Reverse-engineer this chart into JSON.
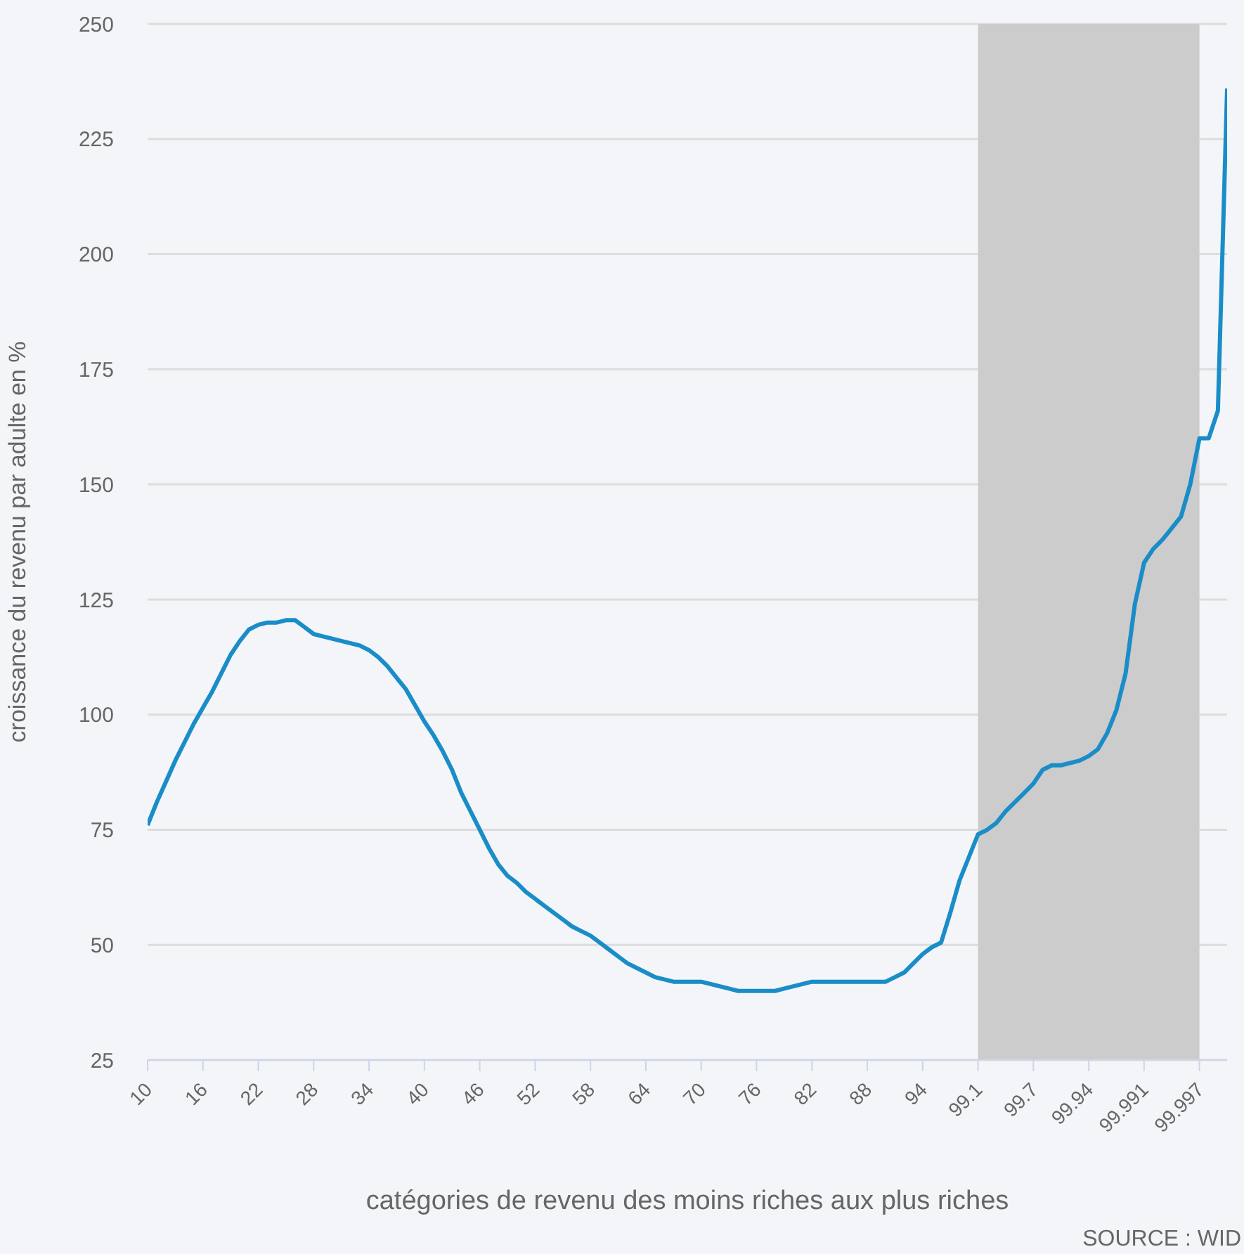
{
  "chart_data": {
    "type": "line",
    "xlabel": "catégories de revenu des moins riches aux plus riches",
    "ylabel": "croissance du revenu par adulte en %",
    "annotations": [
      "SOURCE : WID"
    ],
    "categories": [
      "10",
      null,
      null,
      null,
      null,
      null,
      "16",
      null,
      null,
      null,
      null,
      null,
      "22",
      null,
      null,
      null,
      null,
      null,
      "28",
      null,
      null,
      null,
      null,
      null,
      "34",
      null,
      null,
      null,
      null,
      null,
      "40",
      null,
      null,
      null,
      null,
      null,
      "46",
      null,
      null,
      null,
      null,
      null,
      "52",
      null,
      null,
      null,
      null,
      null,
      "58",
      null,
      null,
      null,
      null,
      null,
      "64",
      null,
      null,
      null,
      null,
      null,
      "70",
      null,
      null,
      null,
      null,
      null,
      "76",
      null,
      null,
      null,
      null,
      null,
      "82",
      null,
      null,
      null,
      null,
      null,
      "88",
      null,
      null,
      null,
      null,
      null,
      "94",
      null,
      null,
      null,
      null,
      null,
      "99.1",
      null,
      null,
      null,
      null,
      null,
      "99.7",
      null,
      null,
      null,
      null,
      null,
      "99.94",
      null,
      null,
      null,
      null,
      null,
      "99.991",
      null,
      null,
      null,
      null,
      null,
      "99.997",
      null,
      null,
      null
    ],
    "series": [
      {
        "color": "#1a8dc8",
        "values": [
          76,
          81,
          85.5,
          90,
          94,
          98,
          101.5,
          105,
          109,
          113,
          116,
          118.5,
          119.5,
          120,
          120,
          120.5,
          120.5,
          119,
          117.5,
          117,
          116.5,
          116,
          115.5,
          115,
          114,
          112.5,
          110.5,
          108,
          105.5,
          102,
          98.5,
          95.5,
          92,
          88,
          83,
          79,
          75,
          71,
          67.5,
          65,
          63.5,
          61.5,
          60,
          58.5,
          57,
          55.5,
          54,
          53,
          52,
          50.5,
          49,
          47.5,
          46,
          45,
          44,
          43,
          42.5,
          42,
          42,
          42,
          42,
          41.5,
          41,
          40.5,
          40,
          40,
          40,
          40,
          40,
          40.5,
          41,
          41.5,
          42,
          42,
          42,
          42,
          42,
          42,
          42,
          42,
          42,
          43,
          44,
          46,
          48,
          49.5,
          50.5,
          57,
          64,
          69,
          74,
          75,
          76.5,
          79,
          81,
          83,
          85,
          88,
          89,
          89,
          89.5,
          90,
          91,
          92.5,
          96,
          101,
          109,
          124,
          133,
          136,
          138,
          140.5,
          143,
          150,
          160,
          160,
          166,
          236
        ]
      }
    ],
    "ylim": [
      25,
      250
    ],
    "yticks": [
      25,
      50,
      75,
      100,
      125,
      150,
      175,
      200,
      225,
      250
    ],
    "grid": "y",
    "legend": false,
    "marker": "none",
    "line_style": "solid",
    "bands": [
      {
        "axis": "x",
        "from": "99.1",
        "to": "99.997",
        "color": "#cccccc"
      }
    ]
  }
}
